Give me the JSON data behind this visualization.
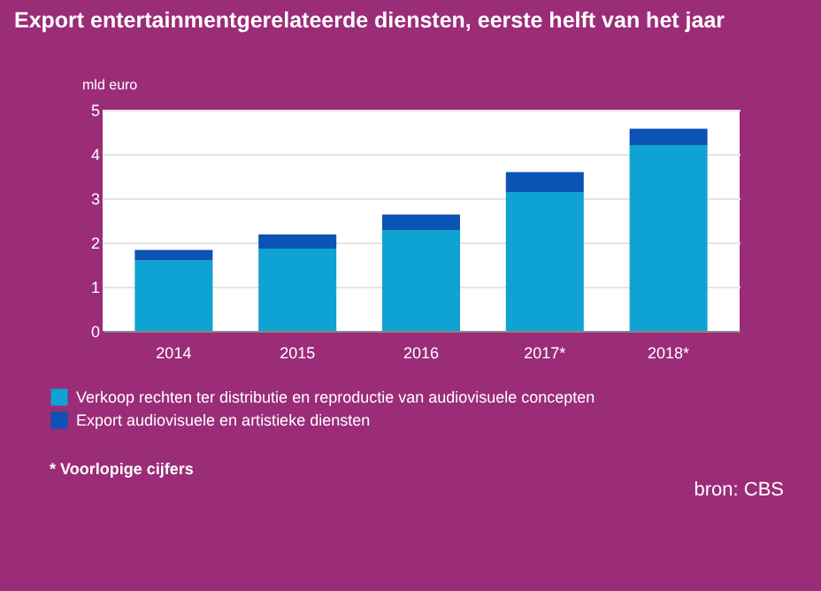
{
  "chart_data": {
    "type": "bar",
    "stacked": true,
    "title": "Export entertainmentgerelateerde diensten, eerste helft van het jaar",
    "ylabel": "mld euro",
    "categories": [
      "2014",
      "2015",
      "2016",
      "2017*",
      "2018*"
    ],
    "series": [
      {
        "name": "Verkoop rechten ter distributie en reproductie van audiovisuele concepten",
        "color": "#0ea3d2",
        "values": [
          1.59,
          1.86,
          2.28,
          3.14,
          4.2
        ]
      },
      {
        "name": "Export audiovisuele en artistieke diensten",
        "color": "#0b53b5",
        "values": [
          0.24,
          0.32,
          0.35,
          0.45,
          0.37
        ]
      }
    ],
    "ylim": [
      0,
      5
    ],
    "yticks": [
      0,
      1,
      2,
      3,
      4,
      5
    ],
    "grid": "y",
    "legend": "bottom",
    "annotations": [
      "* Voorlopige cijfers",
      "bron: CBS"
    ]
  }
}
